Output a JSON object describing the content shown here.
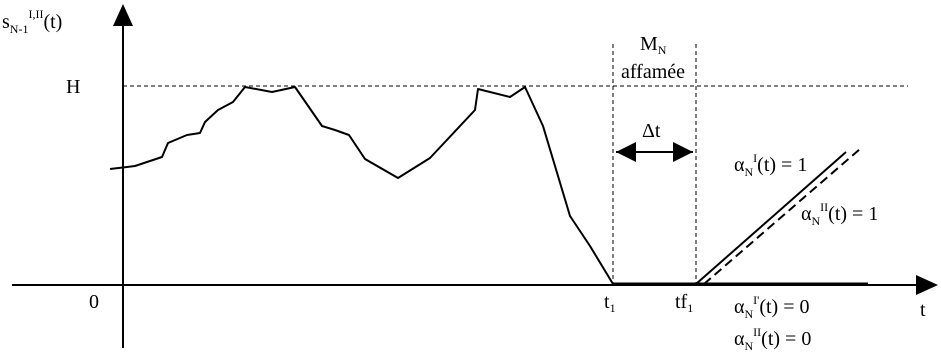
{
  "axes": {
    "y_label": {
      "base": "s",
      "sub": "N-1",
      "sup": "I,II",
      "arg": "(t)"
    },
    "x_label": "t",
    "origin_label": "0",
    "h_label": "H"
  },
  "ticks": {
    "t1": {
      "base": "t",
      "sub": "1"
    },
    "tf1": {
      "base": "tf",
      "sub": "1"
    }
  },
  "starvation": {
    "machine": {
      "base": "M",
      "sub": "N"
    },
    "word": "affamée",
    "interval_label": "Δt"
  },
  "annotations": {
    "alpha1_one": {
      "base": "α",
      "sub": "N",
      "sup": "I",
      "rest": "(t) = 1"
    },
    "alpha2_one": {
      "base": "α",
      "sub": "N",
      "sup": "II",
      "rest": "(t) = 1"
    },
    "alpha1_zero": {
      "base": "α",
      "sub": "N",
      "sup": "I'",
      "rest": "(t) = 0"
    },
    "alpha2_zero": {
      "base": "α",
      "sub": "N",
      "sup": "II",
      "rest": "(t) = 0"
    }
  }
}
